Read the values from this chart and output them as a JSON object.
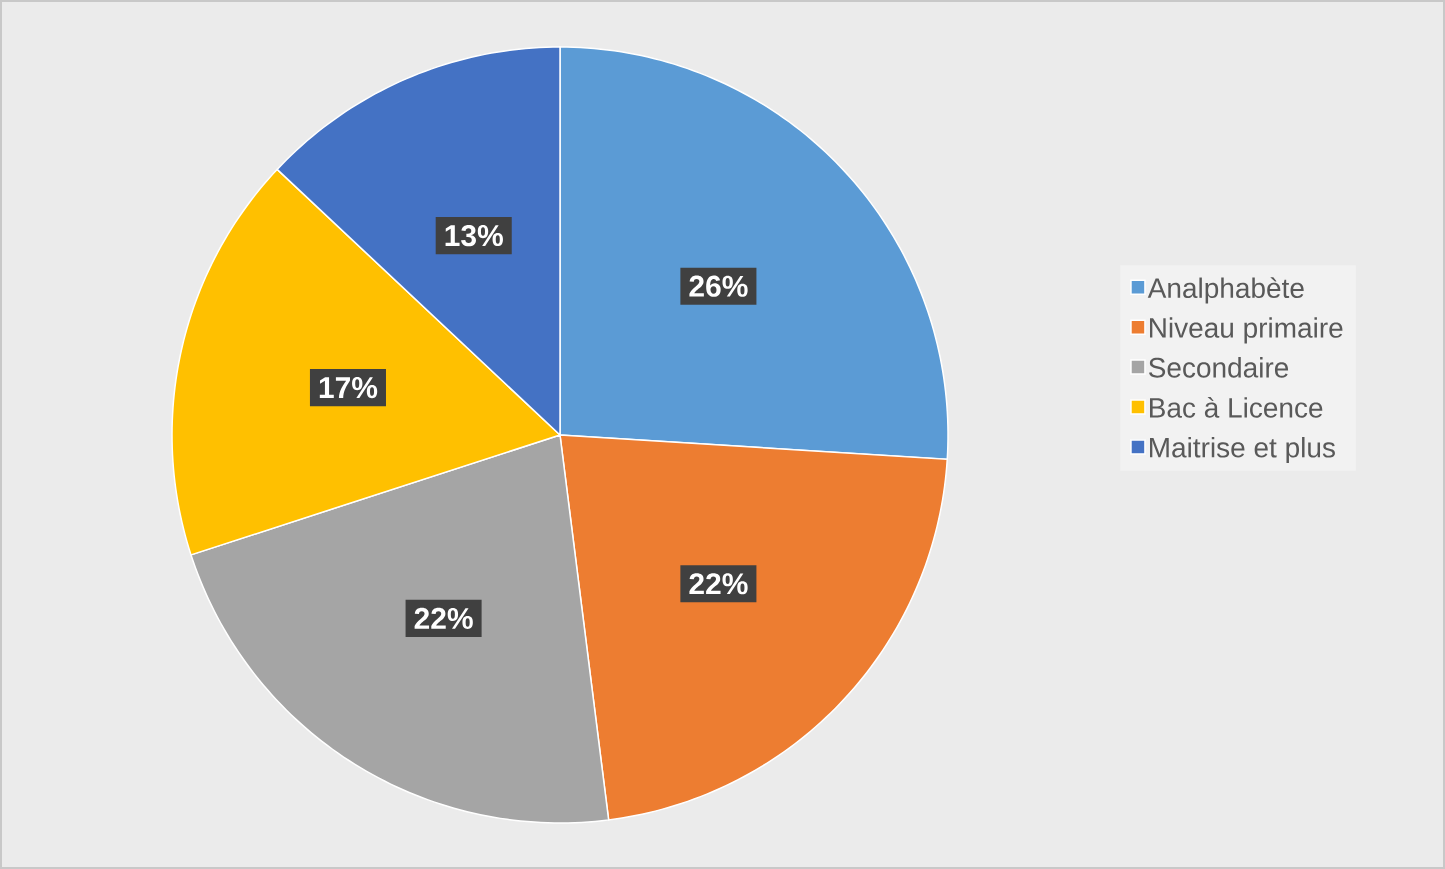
{
  "chart_data": {
    "type": "pie",
    "categories": [
      "Analphabète",
      "Niveau primaire",
      "Secondaire",
      "Bac à Licence",
      "Maitrise et plus"
    ],
    "values": [
      26,
      22,
      22,
      17,
      13
    ],
    "value_labels": [
      "26%",
      "22%",
      "22%",
      "17%",
      "13%"
    ],
    "colors": [
      "#5b9bd5",
      "#ed7d31",
      "#a5a5a5",
      "#ffc000",
      "#4472c4"
    ],
    "legend": "right"
  }
}
